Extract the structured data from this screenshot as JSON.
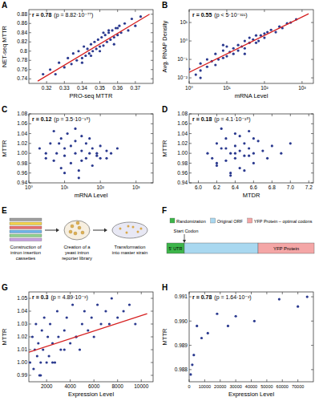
{
  "chart_data": [
    {
      "panel": "A",
      "type": "scatter",
      "x_label": "PRO-seq MTTR",
      "y_label": "NET-seq MTTR",
      "annotation": [
        "r = 0.78",
        "(p = 8.82·10⁻⁷⁷)"
      ],
      "color": "#2b3a8f",
      "xlim": [
        0.31,
        0.38
      ],
      "xticks": [
        0.32,
        0.33,
        0.34,
        0.35,
        0.36,
        0.37
      ],
      "ylim": [
        0.73,
        0.89
      ],
      "yticks": [
        0.74,
        0.76,
        0.78,
        0.8,
        0.82,
        0.84,
        0.86,
        0.88
      ],
      "x": [
        0.318,
        0.322,
        0.325,
        0.327,
        0.33,
        0.332,
        0.334,
        0.335,
        0.337,
        0.338,
        0.34,
        0.341,
        0.342,
        0.343,
        0.344,
        0.345,
        0.346,
        0.347,
        0.348,
        0.349,
        0.35,
        0.351,
        0.352,
        0.353,
        0.354,
        0.355,
        0.356,
        0.357,
        0.358,
        0.359,
        0.36,
        0.361,
        0.362,
        0.364,
        0.366,
        0.368,
        0.37,
        0.373,
        0.345,
        0.35,
        0.355,
        0.36,
        0.34,
        0.352,
        0.358
      ],
      "y": [
        0.75,
        0.76,
        0.75,
        0.775,
        0.765,
        0.785,
        0.772,
        0.795,
        0.78,
        0.8,
        0.785,
        0.81,
        0.79,
        0.805,
        0.795,
        0.815,
        0.8,
        0.82,
        0.805,
        0.825,
        0.81,
        0.83,
        0.812,
        0.835,
        0.82,
        0.84,
        0.825,
        0.845,
        0.83,
        0.85,
        0.835,
        0.855,
        0.84,
        0.86,
        0.845,
        0.87,
        0.855,
        0.875,
        0.79,
        0.8,
        0.845,
        0.85,
        0.775,
        0.84,
        0.815
      ],
      "fit": {
        "x": [
          0.315,
          0.378
        ],
        "y": [
          0.735,
          0.88
        ],
        "color": "#d62020"
      }
    },
    {
      "panel": "B",
      "type": "scatter",
      "log": true,
      "x_label": "mRNA Level",
      "y_label": "Avg. RNAP Density",
      "annotation": [
        "r = 0.55",
        "(p < 5·10⁻³²¹)"
      ],
      "color": "#2b3a8f",
      "xlim": [
        1,
        2000
      ],
      "xticks": [
        {
          "value": 1,
          "label": "10⁰"
        },
        {
          "value": 10,
          "label": "10¹"
        },
        {
          "value": 100,
          "label": "10²"
        },
        {
          "value": 1000,
          "label": "10³"
        }
      ],
      "ylim": [
        0.005,
        50
      ],
      "yticks": [
        {
          "value": 0.01,
          "label": "10⁻²"
        },
        {
          "value": 0.1,
          "label": "10⁻¹"
        },
        {
          "value": 1,
          "label": "10⁰"
        },
        {
          "value": 10,
          "label": "10¹"
        }
      ],
      "x": [
        1,
        1.5,
        2,
        2,
        3,
        3,
        4,
        5,
        5,
        6,
        8,
        8,
        10,
        10,
        12,
        15,
        15,
        20,
        20,
        25,
        30,
        30,
        40,
        40,
        50,
        60,
        70,
        80,
        100,
        100,
        120,
        150,
        200,
        250,
        300,
        400,
        500,
        700,
        2,
        8,
        30,
        60
      ],
      "y": [
        0.03,
        0.015,
        0.06,
        0.025,
        0.04,
        0.1,
        0.08,
        0.2,
        0.05,
        0.1,
        0.3,
        0.12,
        0.15,
        0.5,
        0.25,
        0.4,
        0.2,
        0.6,
        0.3,
        0.5,
        1,
        0.4,
        0.8,
        1.5,
        1.2,
        2,
        1,
        2,
        2.5,
        1.5,
        3,
        4,
        3,
        6,
        5,
        9,
        10,
        15,
        0.01,
        0.6,
        0.2,
        0.8
      ],
      "fit": {
        "x": [
          1,
          1500
        ],
        "y": [
          0.02,
          30
        ],
        "color": "#d62020"
      }
    },
    {
      "panel": "C",
      "type": "scatter",
      "log": "x",
      "x_label": "mRNA Level",
      "y_label": "MTTR",
      "annotation": [
        "r = 0.12",
        "(p = 3.5·10⁻¹⁵)"
      ],
      "color": "#2b3a8f",
      "xlim": [
        1,
        3000
      ],
      "xticks": [
        {
          "value": 1,
          "label": "10⁰"
        },
        {
          "value": 10,
          "label": "10¹"
        },
        {
          "value": 100,
          "label": "10²"
        },
        {
          "value": 1000,
          "label": "10³"
        }
      ],
      "ylim": [
        0.94,
        1.08
      ],
      "yticks": [
        0.94,
        0.96,
        0.98,
        {
          "value": 1,
          "label": "1.00"
        },
        1.02,
        1.04,
        1.06,
        1.08
      ],
      "x": [
        2,
        3,
        4,
        5,
        6,
        8,
        8,
        10,
        10,
        12,
        15,
        15,
        20,
        20,
        25,
        30,
        30,
        40,
        40,
        50,
        60,
        60,
        80,
        100,
        100,
        150,
        200,
        300,
        5,
        10,
        20,
        30,
        50,
        80,
        150,
        3,
        7,
        25
      ],
      "y": [
        1.01,
        0.99,
        1.02,
        0.985,
        1,
        1.03,
        0.97,
        1.01,
        0.995,
        1.04,
        0.98,
        1.015,
        1,
        1.025,
        0.965,
        1.005,
        1.035,
        0.99,
        1.02,
        1,
        1.01,
        0.975,
        1,
        1.015,
        0.99,
        1.005,
        1,
        1.01,
        1.045,
        0.96,
        1.05,
        0.985,
        1.03,
        0.995,
        0.99,
        1,
        1.02,
        0.95
      ]
    },
    {
      "panel": "D",
      "type": "scatter",
      "x_label": "MTDR",
      "y_label": "MTTR",
      "annotation": [
        "r = 0.18",
        "(p = 4.1·10⁻²⁵)"
      ],
      "color": "#2b3a8f",
      "xlim": [
        5.9,
        7.25
      ],
      "xticks": [
        {
          "value": 6,
          "label": "6.0"
        },
        6.2,
        6.4,
        6.6,
        6.8,
        {
          "value": 7,
          "label": "7.0"
        },
        7.2
      ],
      "ylim": [
        0.94,
        1.08
      ],
      "yticks": [
        0.94,
        0.96,
        0.98,
        {
          "value": 1,
          "label": "1.00"
        },
        1.02,
        1.04,
        1.06,
        1.08
      ],
      "x": [
        6.1,
        6.15,
        6.2,
        6.2,
        6.25,
        6.3,
        6.3,
        6.35,
        6.35,
        6.4,
        6.4,
        6.4,
        6.45,
        6.45,
        6.5,
        6.5,
        6.55,
        6.55,
        6.6,
        6.6,
        6.65,
        6.7,
        6.75,
        6.8,
        6.9,
        6.25,
        6.35,
        6.45,
        6.5,
        6.55,
        6.3,
        6.4,
        6.6,
        6.2,
        7.0
      ],
      "y": [
        1,
        0.99,
        1.02,
        0.975,
        1.01,
        0.985,
        1.03,
        1,
        0.96,
        1.015,
        0.99,
        1.04,
        1.005,
        0.97,
        1.02,
        0.995,
        1.01,
        1.045,
        0.98,
        1,
        1.025,
        1.005,
        0.99,
        1.015,
        1,
        1.05,
        0.955,
        1.035,
        0.965,
        0.995,
        1.01,
        1,
        1.03,
        0.98,
        1.02
      ]
    },
    {
      "panel": "G",
      "type": "scatter",
      "x_label": "Expression Level",
      "y_label": "MTTR",
      "annotation": [
        "r = 0.3",
        "(p = 4.89·10⁻³)"
      ],
      "color": "#2b3a8f",
      "xlim": [
        500,
        11000
      ],
      "xticks": [
        2000,
        4000,
        6000,
        8000,
        10000
      ],
      "ylim": [
        0.985,
        1.055
      ],
      "yticks": [
        0.99,
        {
          "value": 1,
          "label": "1.00"
        },
        1.01,
        1.02,
        1.03,
        1.04,
        1.05
      ],
      "x": [
        600,
        800,
        900,
        1000,
        1100,
        1200,
        1300,
        1400,
        1500,
        1600,
        1700,
        1800,
        2000,
        2100,
        2200,
        2300,
        2500,
        2700,
        2900,
        3000,
        3200,
        3500,
        3700,
        4000,
        4200,
        4500,
        4800,
        5000,
        5200,
        5500,
        5800,
        6000,
        6300,
        6600,
        7000,
        7300,
        7500,
        8000,
        8500,
        9000,
        9500,
        1500,
        2500,
        3500,
        4500
      ],
      "y": [
        1,
        1.02,
        0.995,
        1.01,
        1.03,
        1.005,
        1.015,
        0.99,
        1,
        1.025,
        1.01,
        1.035,
        1,
        1.02,
        1.005,
        1.03,
        1.015,
        1,
        1.04,
        1.02,
        1.01,
        1.025,
        1.035,
        1.015,
        1.045,
        1.02,
        1.01,
        1.03,
        1.04,
        1.025,
        1.035,
        1.02,
        1.045,
        1.03,
        1.04,
        1.03,
        1.05,
        1.035,
        1.04,
        1.045,
        1.03,
        0.99,
        1,
        1.01,
        1.02
      ],
      "fit": {
        "x": [
          500,
          10500
        ],
        "y": [
          1.008,
          1.038
        ],
        "color": "#d62020"
      }
    },
    {
      "panel": "H",
      "type": "scatter",
      "x_label": "Expression Level",
      "y_label": "MTTR",
      "annotation": [
        "r = 0.78",
        "(p = 1.64·10⁻³)"
      ],
      "color": "#2b3a8f",
      "xlim": [
        0,
        80000
      ],
      "xticks": [
        0,
        10000,
        20000,
        30000,
        40000,
        50000,
        60000,
        70000
      ],
      "ylim": [
        0.9875,
        0.9912
      ],
      "yticks": [
        0.988,
        0.989,
        {
          "value": 0.99,
          "label": "0.990"
        },
        0.991
      ],
      "x": [
        1000,
        2000,
        3000,
        5000,
        8000,
        12000,
        18000,
        25000,
        30000,
        42000,
        58000,
        70000,
        76000
      ],
      "y": [
        0.9878,
        0.9882,
        0.9886,
        0.9898,
        0.9893,
        0.9895,
        0.9903,
        0.9898,
        0.9902,
        0.99,
        0.9909,
        0.9906,
        0.991
      ]
    }
  ],
  "diagrams": [
    {
      "panel": "E",
      "steps": [
        "Construction of intron insertion cassettes",
        "Creation of a yeast intron reporter library",
        "Transformation into master strain"
      ]
    },
    {
      "panel": "F",
      "legend": [
        {
          "label": "Randomization",
          "color": "#3cb54a"
        },
        {
          "label": "Original ORF",
          "color": "#a9d8f0"
        },
        {
          "label": "YFP Protein – optimal codons",
          "color": "#f4a6a6"
        }
      ],
      "bar_labels": [
        "5' UTR",
        "YFP Protein"
      ],
      "marker_label": "Start Codon"
    }
  ]
}
